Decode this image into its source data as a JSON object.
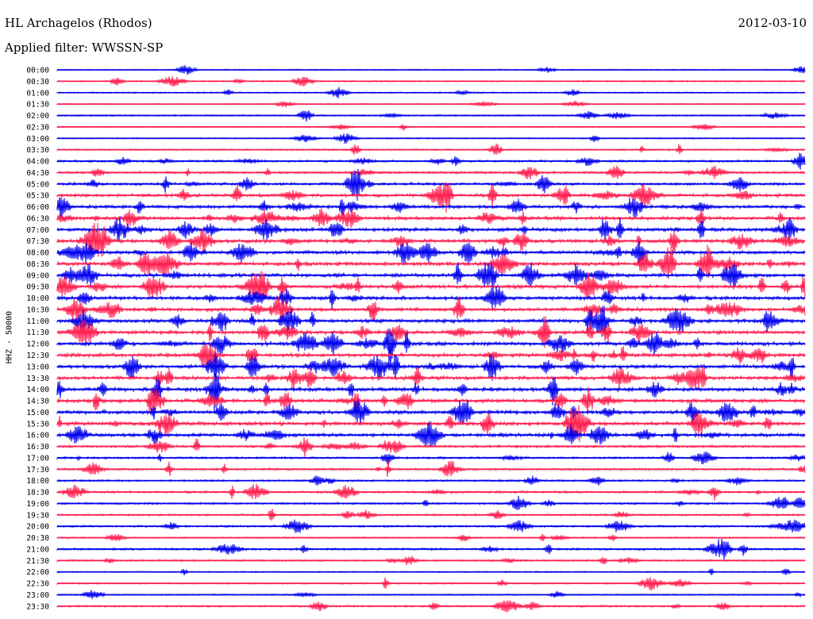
{
  "header": {
    "station": "HL Archagelos (Rhodos)",
    "date": "2012-03-10",
    "filter": "Applied filter: WWSSN-SP"
  },
  "chart_data": {
    "type": "line",
    "title": "HL Archagelos (Rhodos)",
    "ylabel": "HHZ - 50000",
    "colors": [
      "#0000ee",
      "#ff1f4f"
    ],
    "rows": [
      {
        "label": "00:00",
        "activity": 0.05
      },
      {
        "label": "00:30",
        "activity": 0.15
      },
      {
        "label": "01:00",
        "activity": 0.15
      },
      {
        "label": "01:30",
        "activity": 0.1
      },
      {
        "label": "02:00",
        "activity": 0.2
      },
      {
        "label": "02:30",
        "activity": 0.1
      },
      {
        "label": "03:00",
        "activity": 0.1
      },
      {
        "label": "03:30",
        "activity": 0.2
      },
      {
        "label": "04:00",
        "activity": 0.4
      },
      {
        "label": "04:30",
        "activity": 0.45
      },
      {
        "label": "05:00",
        "activity": 0.6
      },
      {
        "label": "05:30",
        "activity": 0.75
      },
      {
        "label": "06:00",
        "activity": 0.75
      },
      {
        "label": "06:30",
        "activity": 0.9
      },
      {
        "label": "07:00",
        "activity": 0.9
      },
      {
        "label": "07:30",
        "activity": 0.85
      },
      {
        "label": "08:00",
        "activity": 0.85
      },
      {
        "label": "08:30",
        "activity": 0.9
      },
      {
        "label": "09:00",
        "activity": 0.9
      },
      {
        "label": "09:30",
        "activity": 0.9
      },
      {
        "label": "10:00",
        "activity": 0.85
      },
      {
        "label": "10:30",
        "activity": 0.85
      },
      {
        "label": "11:00",
        "activity": 0.9
      },
      {
        "label": "11:30",
        "activity": 0.9
      },
      {
        "label": "12:00",
        "activity": 0.95
      },
      {
        "label": "12:30",
        "activity": 0.9
      },
      {
        "label": "13:00",
        "activity": 0.9
      },
      {
        "label": "13:30",
        "activity": 0.9
      },
      {
        "label": "14:00",
        "activity": 0.95
      },
      {
        "label": "14:30",
        "activity": 0.9
      },
      {
        "label": "15:00",
        "activity": 0.95
      },
      {
        "label": "15:30",
        "activity": 0.9
      },
      {
        "label": "16:00",
        "activity": 0.85
      },
      {
        "label": "16:30",
        "activity": 0.5
      },
      {
        "label": "17:00",
        "activity": 0.35
      },
      {
        "label": "17:30",
        "activity": 0.4
      },
      {
        "label": "18:00",
        "activity": 0.3
      },
      {
        "label": "18:30",
        "activity": 0.4
      },
      {
        "label": "19:00",
        "activity": 0.35
      },
      {
        "label": "19:30",
        "activity": 0.3
      },
      {
        "label": "20:00",
        "activity": 0.35
      },
      {
        "label": "20:30",
        "activity": 0.2
      },
      {
        "label": "21:00",
        "activity": 0.4
      },
      {
        "label": "21:30",
        "activity": 0.3
      },
      {
        "label": "22:00",
        "activity": 0.1
      },
      {
        "label": "22:30",
        "activity": 0.2
      },
      {
        "label": "23:00",
        "activity": 0.15
      },
      {
        "label": "23:30",
        "activity": 0.3
      }
    ]
  }
}
